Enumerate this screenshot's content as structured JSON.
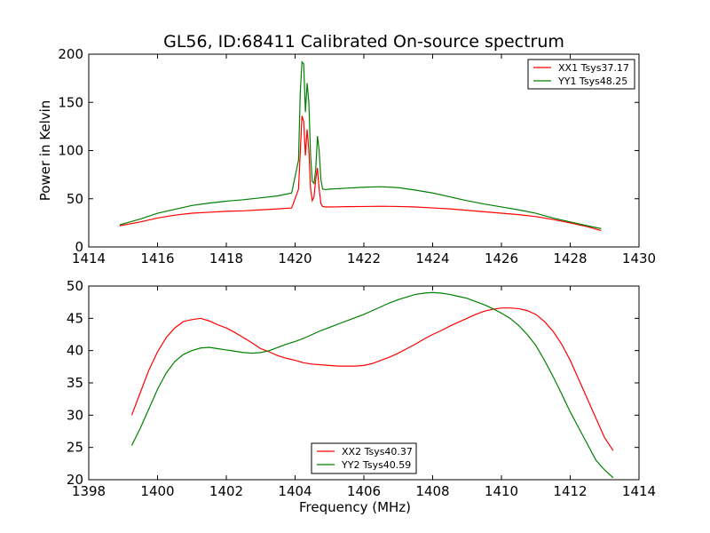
{
  "figure": {
    "title": "GL56, ID:68411 Calibrated On-source spectrum"
  },
  "chart_data": [
    {
      "type": "line",
      "title": "GL56, ID:68411 Calibrated On-source spectrum",
      "xlabel": "",
      "ylabel": "Power in Kelvin",
      "xlim": [
        1414,
        1430
      ],
      "ylim": [
        0,
        200
      ],
      "xticks": [
        "1414",
        "1416",
        "1418",
        "1420",
        "1422",
        "1424",
        "1426",
        "1428",
        "1430"
      ],
      "yticks": [
        "0",
        "50",
        "100",
        "150",
        "200"
      ],
      "grid": false,
      "legend": "top-right",
      "series": [
        {
          "name": "XX1 Tsys37.17",
          "color": "#ff0000",
          "x": [
            1414.9,
            1415.5,
            1416.0,
            1416.5,
            1417.0,
            1417.5,
            1418.0,
            1418.5,
            1419.0,
            1419.5,
            1419.9,
            1420.1,
            1420.2,
            1420.25,
            1420.3,
            1420.35,
            1420.4,
            1420.45,
            1420.5,
            1420.55,
            1420.6,
            1420.65,
            1420.7,
            1420.75,
            1420.8,
            1420.9,
            1421.0,
            1421.5,
            1422.0,
            1422.5,
            1423.0,
            1423.5,
            1424.0,
            1424.5,
            1425.0,
            1425.5,
            1426.0,
            1426.5,
            1427.0,
            1427.5,
            1428.0,
            1428.5,
            1428.9
          ],
          "y": [
            22,
            26,
            30,
            33,
            35,
            36,
            37,
            37.5,
            38.5,
            39.5,
            40.5,
            60,
            136,
            130,
            95,
            122,
            100,
            60,
            48,
            52,
            70,
            82,
            60,
            45,
            42,
            41.5,
            41.5,
            41.8,
            42,
            42.2,
            42,
            41.5,
            40.5,
            39.5,
            38,
            36.5,
            35,
            33.5,
            31.5,
            28.5,
            25,
            21,
            17
          ]
        },
        {
          "name": "YY1 Tsys48.25",
          "color": "#008000",
          "x": [
            1414.9,
            1415.5,
            1416.0,
            1416.5,
            1417.0,
            1417.5,
            1418.0,
            1418.5,
            1419.0,
            1419.5,
            1419.9,
            1420.1,
            1420.15,
            1420.2,
            1420.25,
            1420.3,
            1420.35,
            1420.4,
            1420.45,
            1420.5,
            1420.55,
            1420.6,
            1420.65,
            1420.7,
            1420.75,
            1420.8,
            1420.9,
            1421.0,
            1421.5,
            1422.0,
            1422.5,
            1423.0,
            1423.5,
            1424.0,
            1424.5,
            1425.0,
            1425.5,
            1426.0,
            1426.5,
            1427.0,
            1427.5,
            1428.0,
            1428.5,
            1428.9
          ],
          "y": [
            23,
            29,
            35,
            39,
            43,
            45.5,
            47.5,
            49,
            51,
            53,
            56,
            90,
            160,
            192,
            190,
            140,
            170,
            150,
            95,
            68,
            66,
            80,
            115,
            100,
            70,
            60,
            59.5,
            60,
            61,
            62,
            62.5,
            61.5,
            59,
            56,
            52,
            48,
            44.5,
            41.5,
            38.5,
            35,
            30,
            26,
            22,
            19
          ]
        }
      ]
    },
    {
      "type": "line",
      "title": "",
      "xlabel": "Frequency (MHz)",
      "ylabel": "",
      "xlim": [
        1398,
        1414
      ],
      "ylim": [
        20,
        50
      ],
      "xticks": [
        "1398",
        "1400",
        "1402",
        "1404",
        "1406",
        "1408",
        "1410",
        "1412",
        "1414"
      ],
      "yticks": [
        "20",
        "25",
        "30",
        "35",
        "40",
        "45",
        "50"
      ],
      "grid": false,
      "legend": "bottom-center",
      "series": [
        {
          "name": "XX2 Tsys40.37",
          "color": "#ff0000",
          "x": [
            1399.25,
            1399.5,
            1399.75,
            1400.0,
            1400.25,
            1400.5,
            1400.75,
            1401.0,
            1401.25,
            1401.5,
            1401.75,
            1402.0,
            1402.25,
            1402.5,
            1402.75,
            1403.0,
            1403.25,
            1403.5,
            1403.75,
            1404.0,
            1404.25,
            1404.5,
            1404.75,
            1405.0,
            1405.25,
            1405.5,
            1405.75,
            1406.0,
            1406.25,
            1406.5,
            1406.75,
            1407.0,
            1407.25,
            1407.5,
            1407.75,
            1408.0,
            1408.25,
            1408.5,
            1408.75,
            1409.0,
            1409.25,
            1409.5,
            1409.75,
            1410.0,
            1410.25,
            1410.5,
            1410.75,
            1411.0,
            1411.25,
            1411.5,
            1411.75,
            1412.0,
            1412.25,
            1412.5,
            1412.75,
            1413.0,
            1413.25
          ],
          "y": [
            30,
            33.5,
            37,
            39.8,
            42,
            43.5,
            44.5,
            44.8,
            45,
            44.6,
            44,
            43.5,
            42.8,
            42,
            41.2,
            40.3,
            39.8,
            39.2,
            38.8,
            38.5,
            38.1,
            37.9,
            37.8,
            37.7,
            37.6,
            37.6,
            37.6,
            37.7,
            38,
            38.5,
            39,
            39.6,
            40.3,
            41,
            41.8,
            42.5,
            43.1,
            43.8,
            44.4,
            45,
            45.6,
            46.1,
            46.4,
            46.6,
            46.6,
            46.5,
            46.2,
            45.6,
            44.5,
            43,
            41,
            38.5,
            35.5,
            32.5,
            29.5,
            26.5,
            24.5
          ]
        },
        {
          "name": "YY2 Tsys40.59",
          "color": "#008000",
          "x": [
            1399.25,
            1399.5,
            1399.75,
            1400.0,
            1400.25,
            1400.5,
            1400.75,
            1401.0,
            1401.25,
            1401.5,
            1401.75,
            1402.0,
            1402.25,
            1402.5,
            1402.75,
            1403.0,
            1403.25,
            1403.5,
            1403.75,
            1404.0,
            1404.25,
            1404.5,
            1404.75,
            1405.0,
            1405.25,
            1405.5,
            1405.75,
            1406.0,
            1406.25,
            1406.5,
            1406.75,
            1407.0,
            1407.25,
            1407.5,
            1407.75,
            1408.0,
            1408.25,
            1408.5,
            1408.75,
            1409.0,
            1409.25,
            1409.5,
            1409.75,
            1410.0,
            1410.25,
            1410.5,
            1410.75,
            1411.0,
            1411.25,
            1411.5,
            1411.75,
            1412.0,
            1412.25,
            1412.5,
            1412.75,
            1413.0,
            1413.25
          ],
          "y": [
            25.3,
            28,
            31,
            34,
            36.5,
            38.3,
            39.4,
            40,
            40.4,
            40.5,
            40.3,
            40.1,
            39.9,
            39.7,
            39.6,
            39.7,
            40,
            40.5,
            41,
            41.4,
            41.9,
            42.5,
            43.1,
            43.6,
            44.1,
            44.6,
            45.1,
            45.6,
            46.2,
            46.8,
            47.4,
            47.9,
            48.3,
            48.7,
            48.9,
            49,
            48.9,
            48.7,
            48.4,
            48.1,
            47.6,
            47.1,
            46.5,
            45.8,
            45,
            43.9,
            42.5,
            40.8,
            38.5,
            36,
            33.3,
            30.5,
            28,
            25.5,
            23,
            21.5,
            20.3
          ]
        }
      ]
    }
  ]
}
